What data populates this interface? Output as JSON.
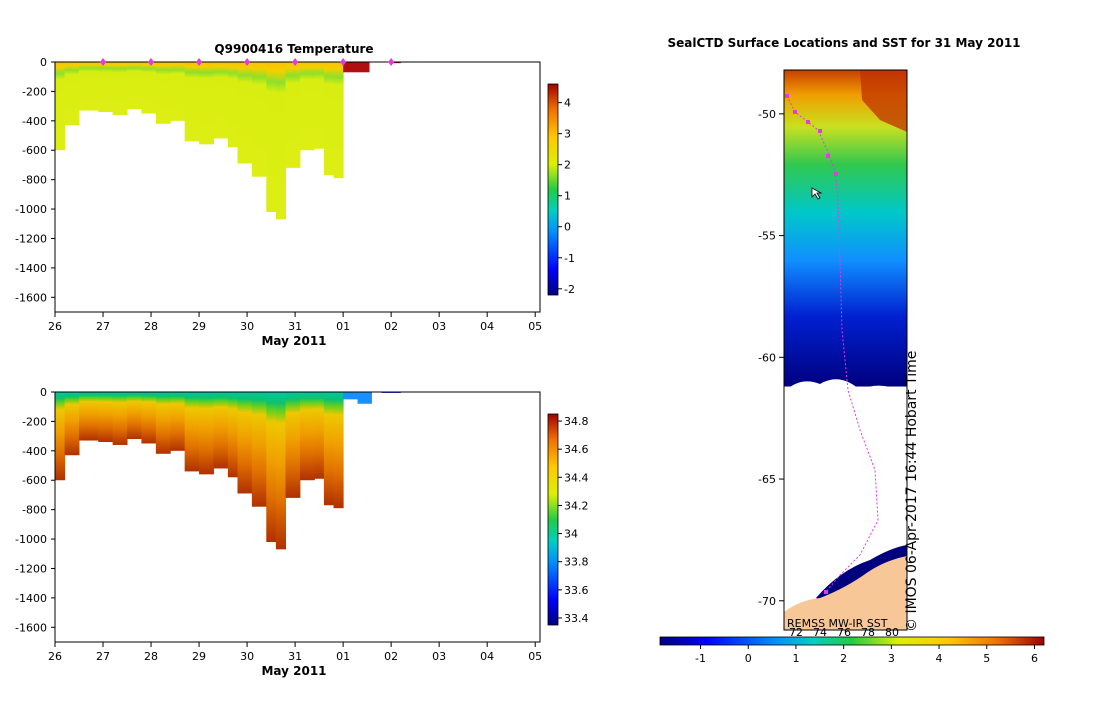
{
  "chart_data": [
    {
      "type": "heatmap",
      "title": "Q9900416  Temperature",
      "xlabel": "May 2011",
      "ylabel": "",
      "x_tick_labels": [
        "26",
        "27",
        "28",
        "29",
        "30",
        "31",
        "01",
        "02",
        "03",
        "04",
        "05"
      ],
      "y_ticks": [
        0,
        -200,
        -400,
        -600,
        -800,
        -1000,
        -1200,
        -1400,
        -1600
      ],
      "ylim": [
        -1700,
        0
      ],
      "colorbar": {
        "ticks": [
          -2,
          -1,
          0,
          1,
          2,
          3,
          4
        ],
        "range": [
          -2.2,
          4.6
        ]
      },
      "profile_depths": [
        {
          "day": 26.0,
          "bottom": -600
        },
        {
          "day": 26.2,
          "bottom": -430
        },
        {
          "day": 26.5,
          "bottom": -330
        },
        {
          "day": 26.9,
          "bottom": -340
        },
        {
          "day": 27.2,
          "bottom": -360
        },
        {
          "day": 27.5,
          "bottom": -320
        },
        {
          "day": 27.8,
          "bottom": -350
        },
        {
          "day": 28.1,
          "bottom": -420
        },
        {
          "day": 28.4,
          "bottom": -400
        },
        {
          "day": 28.7,
          "bottom": -540
        },
        {
          "day": 29.0,
          "bottom": -560
        },
        {
          "day": 29.3,
          "bottom": -520
        },
        {
          "day": 29.6,
          "bottom": -580
        },
        {
          "day": 29.8,
          "bottom": -690
        },
        {
          "day": 30.1,
          "bottom": -780
        },
        {
          "day": 30.4,
          "bottom": -1020
        },
        {
          "day": 30.6,
          "bottom": -1070
        },
        {
          "day": 30.8,
          "bottom": -720
        },
        {
          "day": 31.1,
          "bottom": -600
        },
        {
          "day": 31.4,
          "bottom": -590
        },
        {
          "day": 31.6,
          "bottom": -770
        },
        {
          "day": 31.8,
          "bottom": -790
        }
      ],
      "markers": [
        "27",
        "28",
        "29",
        "30",
        "31",
        "01",
        "02"
      ]
    },
    {
      "type": "heatmap",
      "title": "",
      "xlabel": "May 2011",
      "ylabel": "",
      "x_tick_labels": [
        "26",
        "27",
        "28",
        "29",
        "30",
        "31",
        "01",
        "02",
        "03",
        "04",
        "05"
      ],
      "y_ticks": [
        0,
        -200,
        -400,
        -600,
        -800,
        -1000,
        -1200,
        -1400,
        -1600
      ],
      "ylim": [
        -1700,
        0
      ],
      "colorbar": {
        "ticks": [
          33.4,
          33.6,
          33.8,
          34,
          34.2,
          34.4,
          34.6,
          34.8
        ]
      }
    },
    {
      "type": "heatmap",
      "title": "SealCTD Surface Locations and SST for 31 May 2011",
      "y_ticks": [
        -50,
        -55,
        -60,
        -65,
        -70
      ],
      "colorbar": {
        "ticks": [
          -1,
          0,
          1,
          2,
          3,
          4,
          5,
          6
        ],
        "secondary_ticks": [
          "72",
          "74",
          "76",
          "78",
          "80"
        ]
      },
      "annotations": [
        "REMSS MW-IR SST",
        "© IMOS 06-Apr-2017 16:44 Hobart Time"
      ]
    }
  ],
  "palette": {
    "marker": "#e23be2",
    "land": "#f8c797",
    "ice": "#ffffff",
    "deep_blue": "#00007f",
    "dark_red": "#b21010"
  }
}
